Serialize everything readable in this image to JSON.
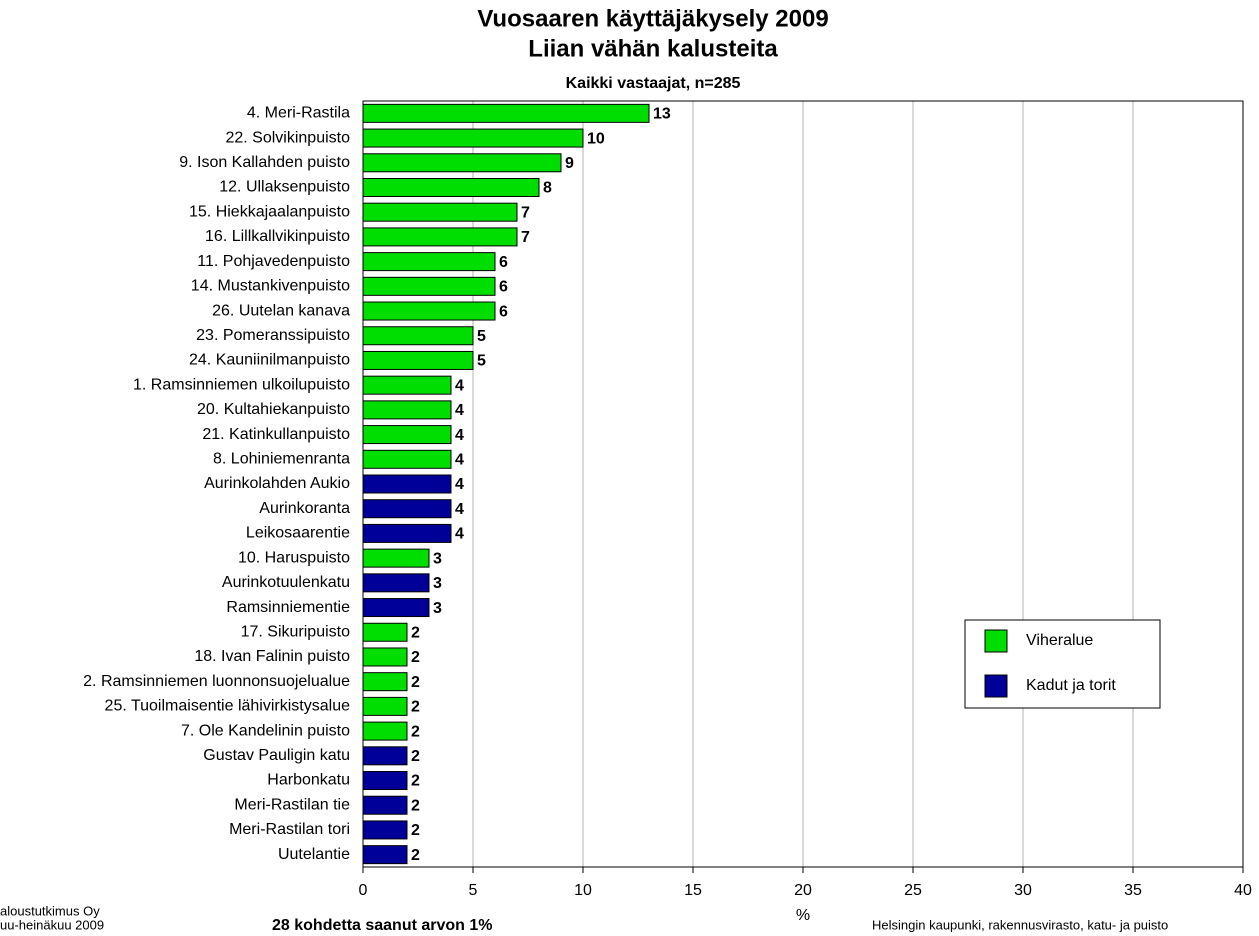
{
  "chart_data": {
    "type": "bar",
    "orientation": "horizontal",
    "title": [
      "Vuosaaren käyttäjäkysely 2009",
      "Liian vähän kalusteita"
    ],
    "subtitle": "Kaikki vastaajat, n=285",
    "xlabel": "%",
    "categories": [
      "4. Meri-Rastila",
      "22. Solvikinpuisto",
      "9. Ison Kallahden puisto",
      "12. Ullaksenpuisto",
      "15. Hiekkajaalanpuisto",
      "16. Lillkallvikinpuisto",
      "11. Pohjavedenpuisto",
      "14. Mustankivenpuisto",
      "26. Uutelan kanava",
      "23. Pomeranssipuisto",
      "24. Kauniinilmanpuisto",
      "1. Ramsinniemen ulkoilupuisto",
      "20. Kultahiekanpuisto",
      "21. Katinkullanpuisto",
      "8. Lohiniemenranta",
      "Aurinkolahden Aukio",
      "Aurinkoranta",
      "Leikosaarentie",
      "10. Haruspuisto",
      "Aurinkotuulenkatu",
      "Ramsinniementie",
      "17. Sikuripuisto",
      "18. Ivan Falinin puisto",
      "2. Ramsinniemen luonnonsuojelualue",
      "25. Tuoilmaisentie lähivirkistysalue",
      "7. Ole Kandelinin puisto",
      "Gustav Pauligin katu",
      "Harbonkatu",
      "Meri-Rastilan tie",
      "Meri-Rastilan tori",
      "Uutelantie"
    ],
    "series": [
      {
        "name": "Viheralue",
        "color": "#00dd00",
        "values": [
          13,
          10,
          9,
          8,
          7,
          7,
          6,
          6,
          6,
          5,
          5,
          4,
          4,
          4,
          4,
          null,
          null,
          null,
          3,
          null,
          null,
          2,
          2,
          2,
          2,
          2,
          null,
          null,
          null,
          null,
          null
        ]
      },
      {
        "name": "Kadut ja torit",
        "color": "#000099",
        "values": [
          null,
          null,
          null,
          null,
          null,
          null,
          null,
          null,
          null,
          null,
          null,
          null,
          null,
          null,
          null,
          4,
          4,
          4,
          null,
          3,
          3,
          null,
          null,
          null,
          null,
          null,
          2,
          2,
          2,
          2,
          2
        ]
      }
    ],
    "xlim": [
      0,
      40
    ],
    "xticks": [
      0,
      5,
      10,
      15,
      20,
      25,
      30,
      35,
      40
    ],
    "grid": true,
    "legend": "right",
    "notes": [
      "aloustutkimus Oy",
      "uu-heinäkuu 2009",
      "28 kohdetta saanut arvon 1%",
      "Helsingin kaupunki, rakennusvirasto, katu- ja puisto"
    ]
  }
}
